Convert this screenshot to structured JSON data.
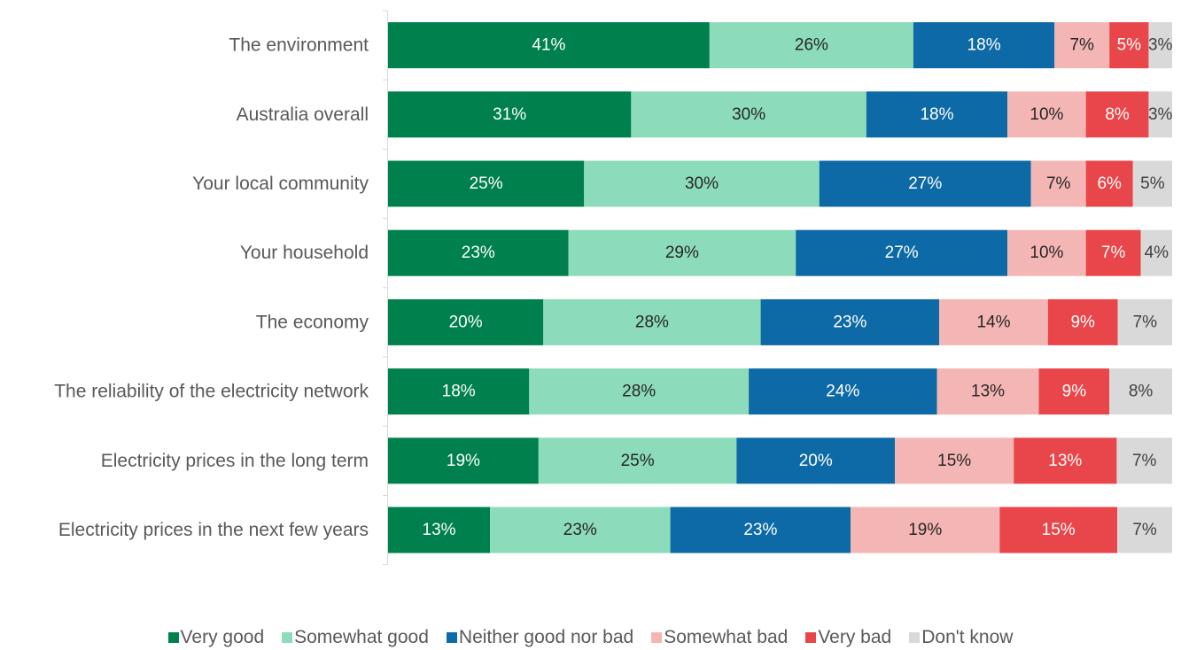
{
  "chart_data": {
    "type": "bar",
    "orientation": "horizontal",
    "stacked": true,
    "percent_stacked": true,
    "title": "",
    "xlabel": "",
    "ylabel": "",
    "categories": [
      "The environment",
      "Australia overall",
      "Your local community",
      "Your household",
      "The economy",
      "The reliability of the electricity network",
      "Electricity prices in the long term",
      "Electricity prices in the next few years"
    ],
    "series": [
      {
        "name": "Very good",
        "color": "#00804c",
        "label_color": "#ffffff",
        "values": [
          41,
          31,
          25,
          23,
          20,
          18,
          19,
          13
        ]
      },
      {
        "name": "Somewhat good",
        "color": "#8cdbbb",
        "label_color": "#262626",
        "values": [
          26,
          30,
          30,
          29,
          28,
          28,
          25,
          23
        ]
      },
      {
        "name": "Neither good nor bad",
        "color": "#0e6aa6",
        "label_color": "#ffffff",
        "values": [
          18,
          18,
          27,
          27,
          23,
          24,
          20,
          23
        ]
      },
      {
        "name": "Somewhat bad",
        "color": "#f4b6b4",
        "label_color": "#262626",
        "values": [
          7,
          10,
          7,
          10,
          14,
          13,
          15,
          19
        ]
      },
      {
        "name": "Very bad",
        "color": "#e8464a",
        "label_color": "#ffffff",
        "values": [
          5,
          8,
          6,
          7,
          9,
          9,
          13,
          15
        ]
      },
      {
        "name": "Don't know",
        "color": "#d9d9d9",
        "label_color": "#404040",
        "values": [
          3,
          3,
          5,
          4,
          7,
          8,
          7,
          7
        ]
      }
    ],
    "value_suffix": "%",
    "xlim": [
      0,
      100
    ],
    "grid": false,
    "legend_position": "bottom"
  }
}
